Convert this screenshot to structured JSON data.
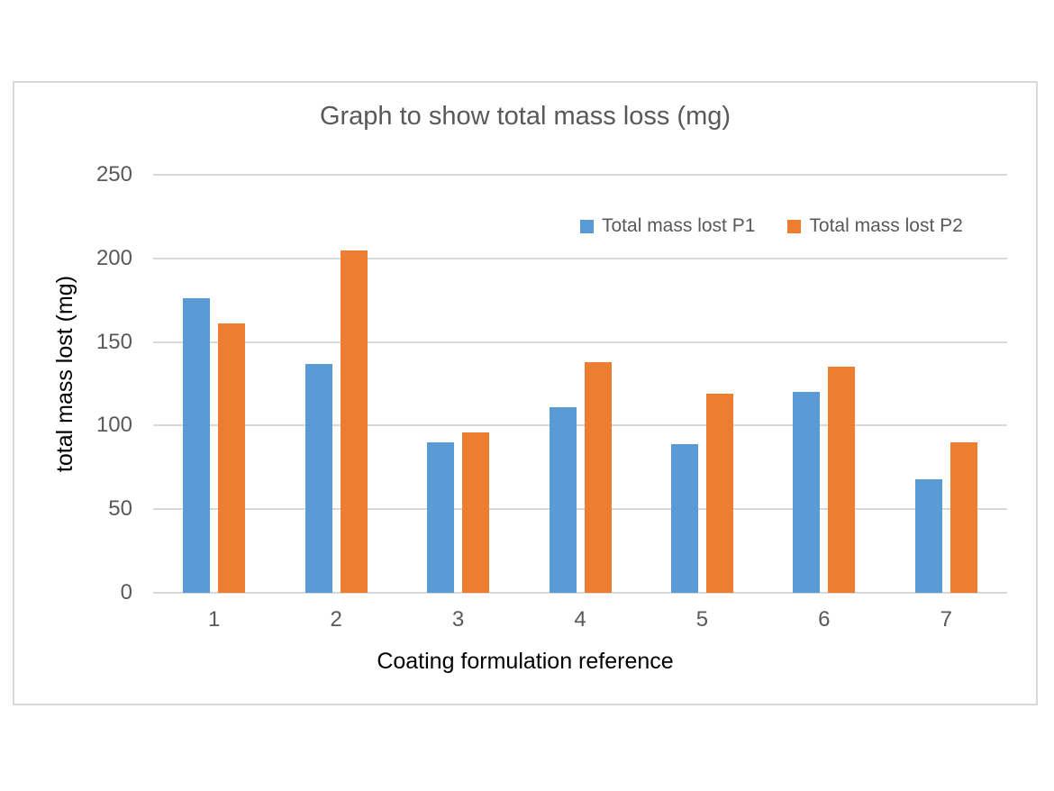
{
  "chart_data": {
    "type": "bar",
    "title": "Graph to show total mass loss (mg)",
    "xlabel": "Coating formulation reference",
    "ylabel": "total mass lost (mg)",
    "categories": [
      "1",
      "2",
      "3",
      "4",
      "5",
      "6",
      "7"
    ],
    "series": [
      {
        "name": "Total mass lost P1",
        "color": "#5B9BD5",
        "values": [
          176,
          137,
          90,
          111,
          89,
          120,
          68
        ]
      },
      {
        "name": "Total mass lost P2",
        "color": "#ED7D31",
        "values": [
          161,
          205,
          96,
          138,
          119,
          135,
          90
        ]
      }
    ],
    "ylim": [
      0,
      250
    ],
    "yticks": [
      0,
      50,
      100,
      150,
      200,
      250
    ],
    "grid": "horizontal",
    "gridline_color": "#D9D9D9",
    "frame_border_color": "#D9D9D9",
    "legend_position": "inside-upper-right",
    "text_colors": {
      "title": "#595959",
      "ticks": "#595959",
      "axis_titles": "#000000",
      "legend": "#595959"
    }
  }
}
